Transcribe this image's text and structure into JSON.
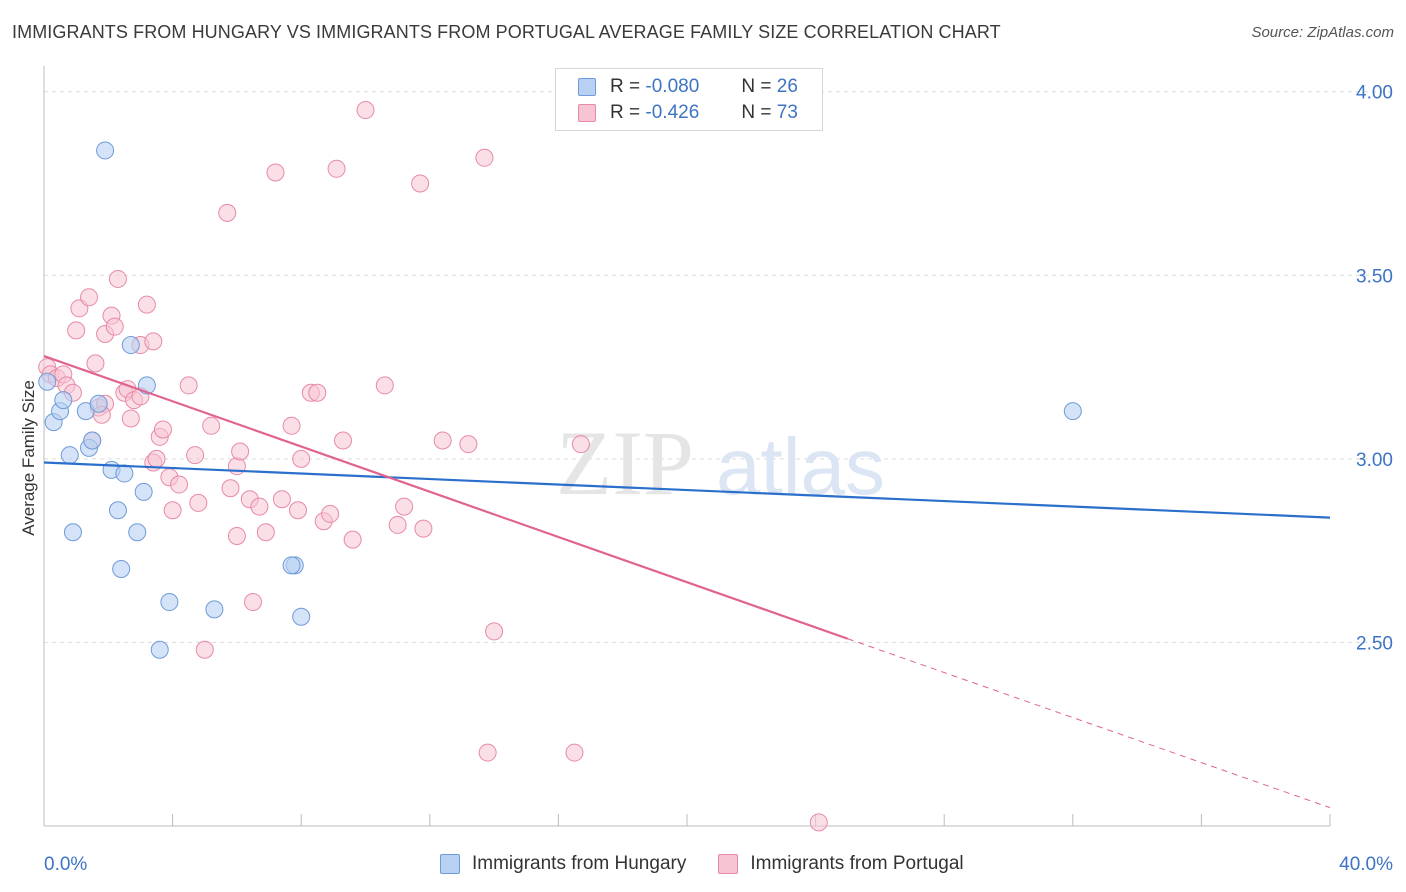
{
  "title": "IMMIGRANTS FROM HUNGARY VS IMMIGRANTS FROM PORTUGAL AVERAGE FAMILY SIZE CORRELATION CHART",
  "source": "Source: ZipAtlas.com",
  "colors": {
    "hungary_fill": "#b8d1f3",
    "hungary_stroke": "#6f9bd8",
    "hungary_line": "#2a6fcc",
    "portugal_fill": "#f7c4d3",
    "portugal_stroke": "#e78aa7",
    "portugal_line": "#e0648f",
    "axis_text": "#3d74c4",
    "grid": "#dcdcdc"
  },
  "legend": {
    "rows": [
      {
        "r_label": "R =",
        "r_value": "-0.080",
        "n_label": "N =",
        "n_value": "26"
      },
      {
        "r_label": "R =",
        "r_value": "-0.426",
        "n_label": "N =",
        "n_value": "73"
      }
    ]
  },
  "watermark": {
    "zip": "ZIP",
    "atlas": "atlas"
  },
  "chart_data": {
    "type": "scatter",
    "title": "IMMIGRANTS FROM HUNGARY VS IMMIGRANTS FROM PORTUGAL AVERAGE FAMILY SIZE CORRELATION CHART",
    "xlabel": "",
    "ylabel": "Average Family Size",
    "xlim": [
      0,
      40
    ],
    "ylim": [
      2.0,
      4.07
    ],
    "x_tick_labels": [
      "0.0%",
      "40.0%"
    ],
    "y_ticks": [
      2.5,
      3.0,
      3.5,
      4.0
    ],
    "y_tick_labels": [
      "2.50",
      "3.00",
      "3.50",
      "4.00"
    ],
    "grid": true,
    "series": [
      {
        "name": "Immigrants from Hungary",
        "points": [
          [
            0.1,
            3.21
          ],
          [
            0.3,
            3.1
          ],
          [
            0.5,
            3.13
          ],
          [
            0.6,
            3.16
          ],
          [
            0.8,
            3.01
          ],
          [
            0.9,
            2.8
          ],
          [
            1.3,
            3.13
          ],
          [
            1.4,
            3.03
          ],
          [
            1.5,
            3.05
          ],
          [
            1.7,
            3.15
          ],
          [
            1.9,
            3.84
          ],
          [
            2.1,
            2.97
          ],
          [
            2.3,
            2.86
          ],
          [
            2.4,
            2.7
          ],
          [
            2.5,
            2.96
          ],
          [
            2.7,
            3.31
          ],
          [
            2.9,
            2.8
          ],
          [
            3.1,
            2.91
          ],
          [
            3.2,
            3.2
          ],
          [
            3.6,
            2.48
          ],
          [
            3.9,
            2.61
          ],
          [
            5.3,
            2.59
          ],
          [
            7.8,
            2.71
          ],
          [
            7.7,
            2.71
          ],
          [
            8.0,
            2.57
          ],
          [
            32.0,
            3.13
          ]
        ],
        "trend": {
          "x0": 0,
          "y0": 2.99,
          "x1": 40,
          "y1": 2.84
        }
      },
      {
        "name": "Immigrants from Portugal",
        "points": [
          [
            0.1,
            3.25
          ],
          [
            0.2,
            3.23
          ],
          [
            0.4,
            3.22
          ],
          [
            0.6,
            3.23
          ],
          [
            0.7,
            3.2
          ],
          [
            0.9,
            3.18
          ],
          [
            1.0,
            3.35
          ],
          [
            1.1,
            3.41
          ],
          [
            1.4,
            3.44
          ],
          [
            1.5,
            3.05
          ],
          [
            1.6,
            3.26
          ],
          [
            1.7,
            3.14
          ],
          [
            1.9,
            3.15
          ],
          [
            1.9,
            3.34
          ],
          [
            2.1,
            3.39
          ],
          [
            2.2,
            3.36
          ],
          [
            2.3,
            3.49
          ],
          [
            2.5,
            3.18
          ],
          [
            2.6,
            3.19
          ],
          [
            2.7,
            3.11
          ],
          [
            2.8,
            3.16
          ],
          [
            3.0,
            3.31
          ],
          [
            3.2,
            3.42
          ],
          [
            3.4,
            3.32
          ],
          [
            3.4,
            2.99
          ],
          [
            3.5,
            3.0
          ],
          [
            3.6,
            3.06
          ],
          [
            3.7,
            3.08
          ],
          [
            3.9,
            2.95
          ],
          [
            4.0,
            2.86
          ],
          [
            4.2,
            2.93
          ],
          [
            4.5,
            3.2
          ],
          [
            4.7,
            3.01
          ],
          [
            4.8,
            2.88
          ],
          [
            5.0,
            2.48
          ],
          [
            5.2,
            3.09
          ],
          [
            5.7,
            3.67
          ],
          [
            5.8,
            2.92
          ],
          [
            6.0,
            2.98
          ],
          [
            6.1,
            3.02
          ],
          [
            6.4,
            2.89
          ],
          [
            6.5,
            2.61
          ],
          [
            6.7,
            2.87
          ],
          [
            6.9,
            2.8
          ],
          [
            7.2,
            3.78
          ],
          [
            7.4,
            2.89
          ],
          [
            7.7,
            3.09
          ],
          [
            7.9,
            2.86
          ],
          [
            8.0,
            3.0
          ],
          [
            8.3,
            3.18
          ],
          [
            8.5,
            3.18
          ],
          [
            8.7,
            2.83
          ],
          [
            8.9,
            2.85
          ],
          [
            9.1,
            3.79
          ],
          [
            9.3,
            3.05
          ],
          [
            9.6,
            2.78
          ],
          [
            10.0,
            3.95
          ],
          [
            10.6,
            3.2
          ],
          [
            11.0,
            2.82
          ],
          [
            11.2,
            2.87
          ],
          [
            11.7,
            3.75
          ],
          [
            11.8,
            2.81
          ],
          [
            12.4,
            3.05
          ],
          [
            13.2,
            3.04
          ],
          [
            13.7,
            3.82
          ],
          [
            13.8,
            2.2
          ],
          [
            14.0,
            2.53
          ],
          [
            16.5,
            2.2
          ],
          [
            16.7,
            3.04
          ],
          [
            24.1,
            2.01
          ],
          [
            3.0,
            3.17
          ],
          [
            1.8,
            3.12
          ],
          [
            6.0,
            2.79
          ]
        ],
        "trend": {
          "x0": 0,
          "y0": 3.28,
          "x1": 25,
          "y1": 2.51,
          "dash_to_x": 40,
          "dash_to_y": 2.05
        }
      }
    ]
  }
}
